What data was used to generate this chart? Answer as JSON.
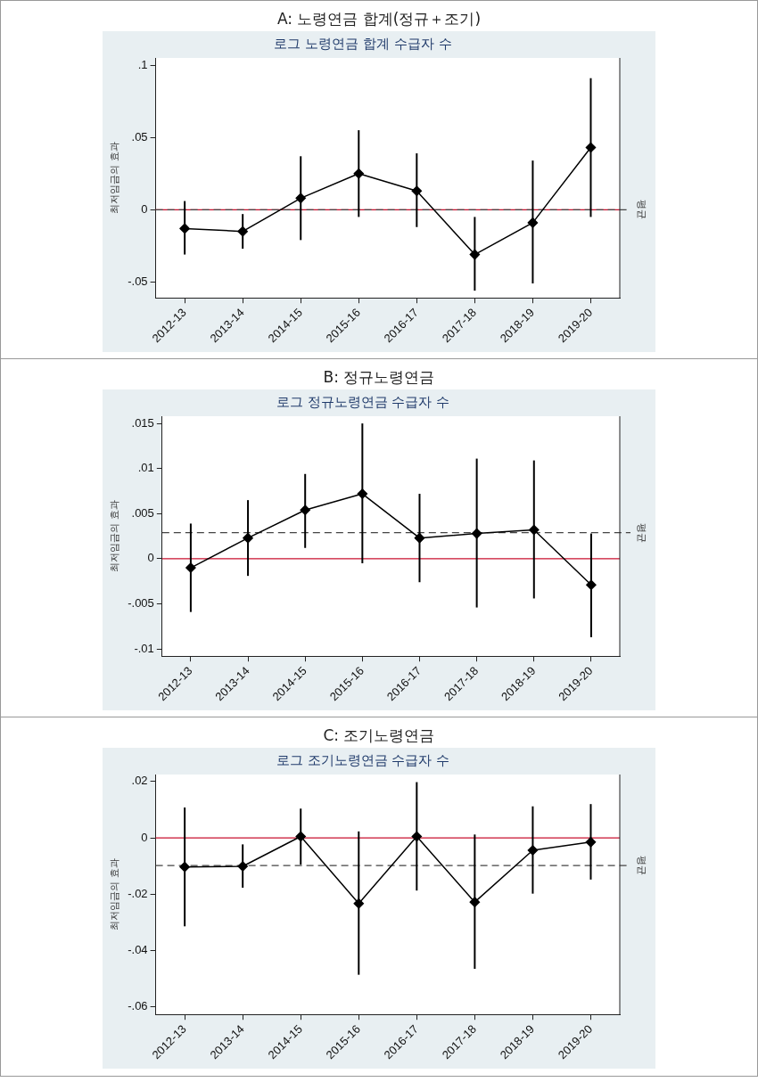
{
  "chart_data": [
    {
      "type": "line",
      "title": "A: 노령연금 합계(정규＋조기)",
      "subtitle": "로그 노령연금 합계 수급자 수",
      "ylabel": "최저임금의 효과",
      "categories": [
        "2012-13",
        "2013-14",
        "2014-15",
        "2015-16",
        "2016-17",
        "2017-18",
        "2018-19",
        "2019-20"
      ],
      "series": [
        {
          "color": "#000000",
          "values": [
            -0.013,
            -0.015,
            0.008,
            0.025,
            0.013,
            -0.031,
            -0.009,
            0.043
          ],
          "errors": [
            [
              -0.031,
              0.006
            ],
            [
              -0.027,
              -0.003
            ],
            [
              -0.021,
              0.037
            ],
            [
              -0.005,
              0.055
            ],
            [
              -0.012,
              0.039
            ],
            [
              -0.056,
              -0.005
            ],
            [
              -0.051,
              0.034
            ],
            [
              -0.005,
              0.091
            ]
          ]
        }
      ],
      "ylim": [
        -0.061,
        0.105
      ],
      "yticks": [
        {
          "value": -0.05,
          "label": "-.05"
        },
        {
          "value": 0,
          "label": "0"
        },
        {
          "value": 0.05,
          "label": ".05"
        },
        {
          "value": 0.1,
          "label": ".1"
        }
      ],
      "ref_lines": [
        {
          "axis": "y",
          "value": 0,
          "color": "#c8102e",
          "line_style": "solid"
        },
        {
          "axis": "y",
          "value": 0,
          "label": "평균",
          "color": "#444444",
          "line_style": "dashed"
        }
      ],
      "marker": "diamond",
      "line_style": "solid",
      "grid": false,
      "legend": false
    },
    {
      "type": "line",
      "title": "B: 정규노령연금",
      "subtitle": "로그 정규노령연금 수급자 수",
      "ylabel": "최저임금의 효과",
      "categories": [
        "2012-13",
        "2013-14",
        "2014-15",
        "2015-16",
        "2016-17",
        "2017-18",
        "2018-19",
        "2019-20"
      ],
      "series": [
        {
          "color": "#000000",
          "values": [
            -0.001,
            0.0023,
            0.0054,
            0.0072,
            0.0023,
            0.0028,
            0.0032,
            -0.0029
          ],
          "errors": [
            [
              -0.0059,
              0.0039
            ],
            [
              -0.0019,
              0.0065
            ],
            [
              0.0012,
              0.0094
            ],
            [
              -0.0005,
              0.015
            ],
            [
              -0.0026,
              0.0072
            ],
            [
              -0.0054,
              0.0111
            ],
            [
              -0.0044,
              0.0109
            ],
            [
              -0.0087,
              0.0028
            ]
          ]
        }
      ],
      "ylim": [
        -0.0108,
        0.0158
      ],
      "yticks": [
        {
          "value": -0.01,
          "label": "-.01"
        },
        {
          "value": -0.005,
          "label": "-.005"
        },
        {
          "value": 0,
          "label": "0"
        },
        {
          "value": 0.005,
          "label": ".005"
        },
        {
          "value": 0.01,
          "label": ".01"
        },
        {
          "value": 0.015,
          "label": ".015"
        }
      ],
      "ref_lines": [
        {
          "axis": "y",
          "value": 0,
          "color": "#c8102e",
          "line_style": "solid"
        },
        {
          "axis": "y",
          "value": 0.0029,
          "label": "평균",
          "color": "#444444",
          "line_style": "dashed"
        }
      ],
      "marker": "diamond",
      "line_style": "solid",
      "grid": false,
      "legend": false
    },
    {
      "type": "line",
      "title": "C: 조기노령연금",
      "subtitle": "로그 조기노령연금 수급자 수",
      "ylabel": "최저임금의 효과",
      "categories": [
        "2012-13",
        "2013-14",
        "2014-15",
        "2015-16",
        "2016-17",
        "2017-18",
        "2018-19",
        "2019-20"
      ],
      "series": [
        {
          "color": "#000000",
          "values": [
            -0.0103,
            -0.0101,
            0.0005,
            -0.0233,
            0.0005,
            -0.0228,
            -0.0044,
            -0.0015
          ],
          "errors": [
            [
              -0.0314,
              0.0108
            ],
            [
              -0.0177,
              -0.0023
            ],
            [
              -0.0095,
              0.0104
            ],
            [
              -0.0486,
              0.0023
            ],
            [
              -0.0187,
              0.0198
            ],
            [
              -0.0465,
              0.0012
            ],
            [
              -0.0198,
              0.0112
            ],
            [
              -0.0148,
              0.012
            ]
          ]
        }
      ],
      "ylim": [
        -0.0627,
        0.0225
      ],
      "yticks": [
        {
          "value": -0.06,
          "label": "-.06"
        },
        {
          "value": -0.04,
          "label": "-.04"
        },
        {
          "value": -0.02,
          "label": "-.02"
        },
        {
          "value": 0,
          "label": "0"
        },
        {
          "value": 0.02,
          "label": ".02"
        }
      ],
      "ref_lines": [
        {
          "axis": "y",
          "value": 0,
          "color": "#c8102e",
          "line_style": "solid"
        },
        {
          "axis": "y",
          "value": -0.0098,
          "label": "평균",
          "color": "#444444",
          "line_style": "dashed"
        }
      ],
      "marker": "diamond",
      "line_style": "solid",
      "grid": false,
      "legend": false
    }
  ]
}
